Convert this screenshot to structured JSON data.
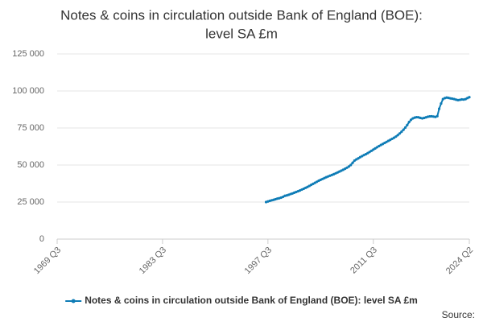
{
  "chart_data": {
    "type": "line",
    "title": [
      "Notes & coins in circulation outside Bank of England (BOE):",
      "level SA £m"
    ],
    "source": "Source:",
    "xlim": [
      1969.5,
      2024.25
    ],
    "xticks": [
      {
        "value": 1969.5,
        "label": "1969 Q3"
      },
      {
        "value": 1983.5,
        "label": "1983 Q3"
      },
      {
        "value": 1997.5,
        "label": "1997 Q3"
      },
      {
        "value": 2011.5,
        "label": "2011 Q3"
      },
      {
        "value": 2024.25,
        "label": "2024 Q2"
      }
    ],
    "ylim": [
      0,
      125000
    ],
    "yticks": [
      0,
      {
        "value": 25000,
        "label": "25 000"
      },
      {
        "value": 50000,
        "label": "50 000"
      },
      {
        "value": 75000,
        "label": "75 000"
      },
      {
        "value": 100000,
        "label": "100 000"
      },
      {
        "value": 125000,
        "label": "125 000"
      }
    ],
    "grid": true,
    "legend": "bottom",
    "series": [
      {
        "name": "Notes & coins in circulation outside Bank of England (BOE): level SA £m",
        "color": "#0e7cb6",
        "x": [
          1997.25,
          1997.5,
          1997.75,
          1998,
          1998.25,
          1998.5,
          1998.75,
          1999,
          1999.25,
          1999.5,
          1999.75,
          2000,
          2000.25,
          2000.5,
          2000.75,
          2001,
          2001.25,
          2001.5,
          2001.75,
          2002,
          2002.25,
          2002.5,
          2002.75,
          2003,
          2003.25,
          2003.5,
          2003.75,
          2004,
          2004.25,
          2004.5,
          2004.75,
          2005,
          2005.25,
          2005.5,
          2005.75,
          2006,
          2006.25,
          2006.5,
          2006.75,
          2007,
          2007.25,
          2007.5,
          2007.75,
          2008,
          2008.25,
          2008.5,
          2008.75,
          2009,
          2009.25,
          2009.5,
          2009.75,
          2010,
          2010.25,
          2010.5,
          2010.75,
          2011,
          2011.25,
          2011.5,
          2011.75,
          2012,
          2012.25,
          2012.5,
          2012.75,
          2013,
          2013.25,
          2013.5,
          2013.75,
          2014,
          2014.25,
          2014.5,
          2014.75,
          2015,
          2015.25,
          2015.5,
          2015.75,
          2016,
          2016.25,
          2016.5,
          2016.75,
          2017,
          2017.25,
          2017.5,
          2017.75,
          2018,
          2018.25,
          2018.5,
          2018.75,
          2019,
          2019.25,
          2019.5,
          2019.75,
          2020,
          2020.25,
          2020.5,
          2020.75,
          2021,
          2021.25,
          2021.5,
          2021.75,
          2022,
          2022.25,
          2022.5,
          2022.75,
          2023,
          2023.25,
          2023.5,
          2023.75,
          2024,
          2024.25
        ],
        "values": [
          25000,
          25400,
          25800,
          26200,
          26500,
          26900,
          27300,
          27600,
          28000,
          28500,
          29200,
          29500,
          29900,
          30400,
          30800,
          31300,
          31800,
          32300,
          32800,
          33400,
          34000,
          34600,
          35200,
          35900,
          36600,
          37300,
          38000,
          38700,
          39400,
          40000,
          40600,
          41200,
          41800,
          42300,
          42800,
          43300,
          43800,
          44400,
          45000,
          45600,
          46200,
          46800,
          47500,
          48200,
          49000,
          50000,
          51500,
          53000,
          53800,
          54500,
          55300,
          56000,
          56700,
          57300,
          58000,
          58800,
          59600,
          60400,
          61200,
          62000,
          62800,
          63500,
          64200,
          64900,
          65600,
          66300,
          67000,
          67700,
          68400,
          69200,
          70200,
          71300,
          72500,
          73800,
          75300,
          77000,
          79000,
          80500,
          81500,
          82000,
          82300,
          82200,
          81800,
          81500,
          81800,
          82200,
          82600,
          82800,
          82900,
          82700,
          82500,
          83000,
          88000,
          91500,
          94500,
          95200,
          95500,
          95300,
          95000,
          94800,
          94500,
          94100,
          93800,
          94000,
          94300,
          94200,
          94500,
          95200,
          95800
        ]
      }
    ]
  }
}
